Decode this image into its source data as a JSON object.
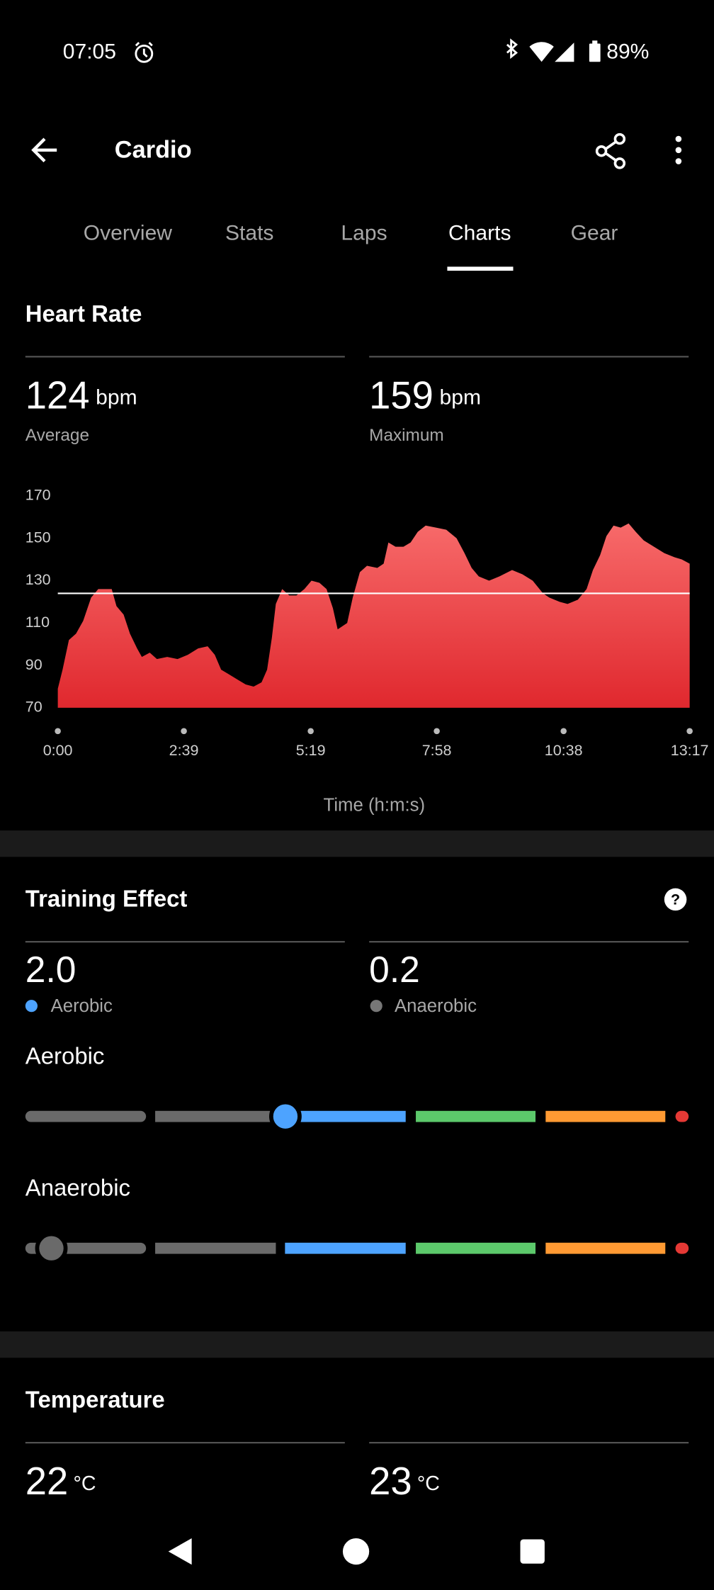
{
  "status_bar": {
    "time": "07:05",
    "battery": "89%"
  },
  "app_bar": {
    "title": "Cardio"
  },
  "tabs": [
    "Overview",
    "Stats",
    "Laps",
    "Charts",
    "Gear"
  ],
  "selected_tab": "Charts",
  "heart_rate": {
    "title": "Heart Rate",
    "average": {
      "value": 124,
      "unit": "bpm",
      "label": "Average"
    },
    "maximum": {
      "value": 159,
      "unit": "bpm",
      "label": "Maximum"
    }
  },
  "chart_data": {
    "type": "area",
    "x_label": "Time (h:m:s)",
    "color_top": "#f76a6a",
    "color_bottom": "#e0282e",
    "x": [
      0,
      6,
      14,
      23,
      32,
      42,
      51,
      61,
      68,
      74,
      83,
      91,
      100,
      106,
      116,
      125,
      138,
      151,
      164,
      177,
      189,
      198,
      206,
      215,
      228,
      237,
      247,
      257,
      264,
      270,
      275,
      283,
      292,
      301,
      311,
      320,
      330,
      339,
      347,
      353,
      365,
      372,
      381,
      390,
      403,
      411,
      417,
      426,
      436,
      445,
      454,
      464,
      477,
      490,
      503,
      513,
      522,
      531,
      544,
      557,
      573,
      586,
      599,
      612,
      620,
      633,
      643,
      656,
      667,
      675,
      684,
      692,
      701,
      710,
      720,
      729,
      739,
      752,
      765,
      778,
      787,
      797
    ],
    "values": [
      79,
      88,
      102,
      105,
      111,
      122,
      126,
      126,
      126,
      118,
      114,
      105,
      98,
      94,
      96,
      93,
      94,
      93,
      95,
      98,
      99,
      95,
      88,
      86,
      83,
      81,
      80,
      82,
      88,
      103,
      119,
      126,
      123,
      123,
      126,
      130,
      129,
      126,
      117,
      107,
      110,
      122,
      134,
      137,
      136,
      138,
      148,
      146,
      146,
      148,
      153,
      156,
      155,
      154,
      150,
      143,
      136,
      132,
      130,
      132,
      135,
      133,
      130,
      124,
      122,
      120,
      119,
      121,
      126,
      135,
      142,
      151,
      156,
      155,
      157,
      153,
      149,
      146,
      143,
      141,
      140,
      138
    ],
    "xlim": [
      0,
      797
    ],
    "ylim": [
      70,
      170
    ],
    "yticks": [
      70,
      90,
      110,
      130,
      150,
      170
    ],
    "xticks": [
      {
        "value": 0,
        "label": "0:00"
      },
      {
        "value": 159,
        "label": "2:39"
      },
      {
        "value": 319,
        "label": "5:19"
      },
      {
        "value": 478,
        "label": "7:58"
      },
      {
        "value": 638,
        "label": "10:38"
      },
      {
        "value": 797,
        "label": "13:17"
      }
    ]
  },
  "training_effect": {
    "title": "Training Effect",
    "aerobic": {
      "value": 2,
      "label": "2.0",
      "name": "Aerobic"
    },
    "anaerobic": {
      "value": 0.2,
      "label": "0.2",
      "name": "Anaerobic"
    },
    "aerobic_heading": "Aerobic",
    "anaerobic_heading": "Anaerobic"
  },
  "temperature": {
    "title": "Temperature",
    "readings": [
      {
        "value": 22,
        "unit": "°C"
      },
      {
        "value": 23,
        "unit": "°C"
      }
    ]
  }
}
